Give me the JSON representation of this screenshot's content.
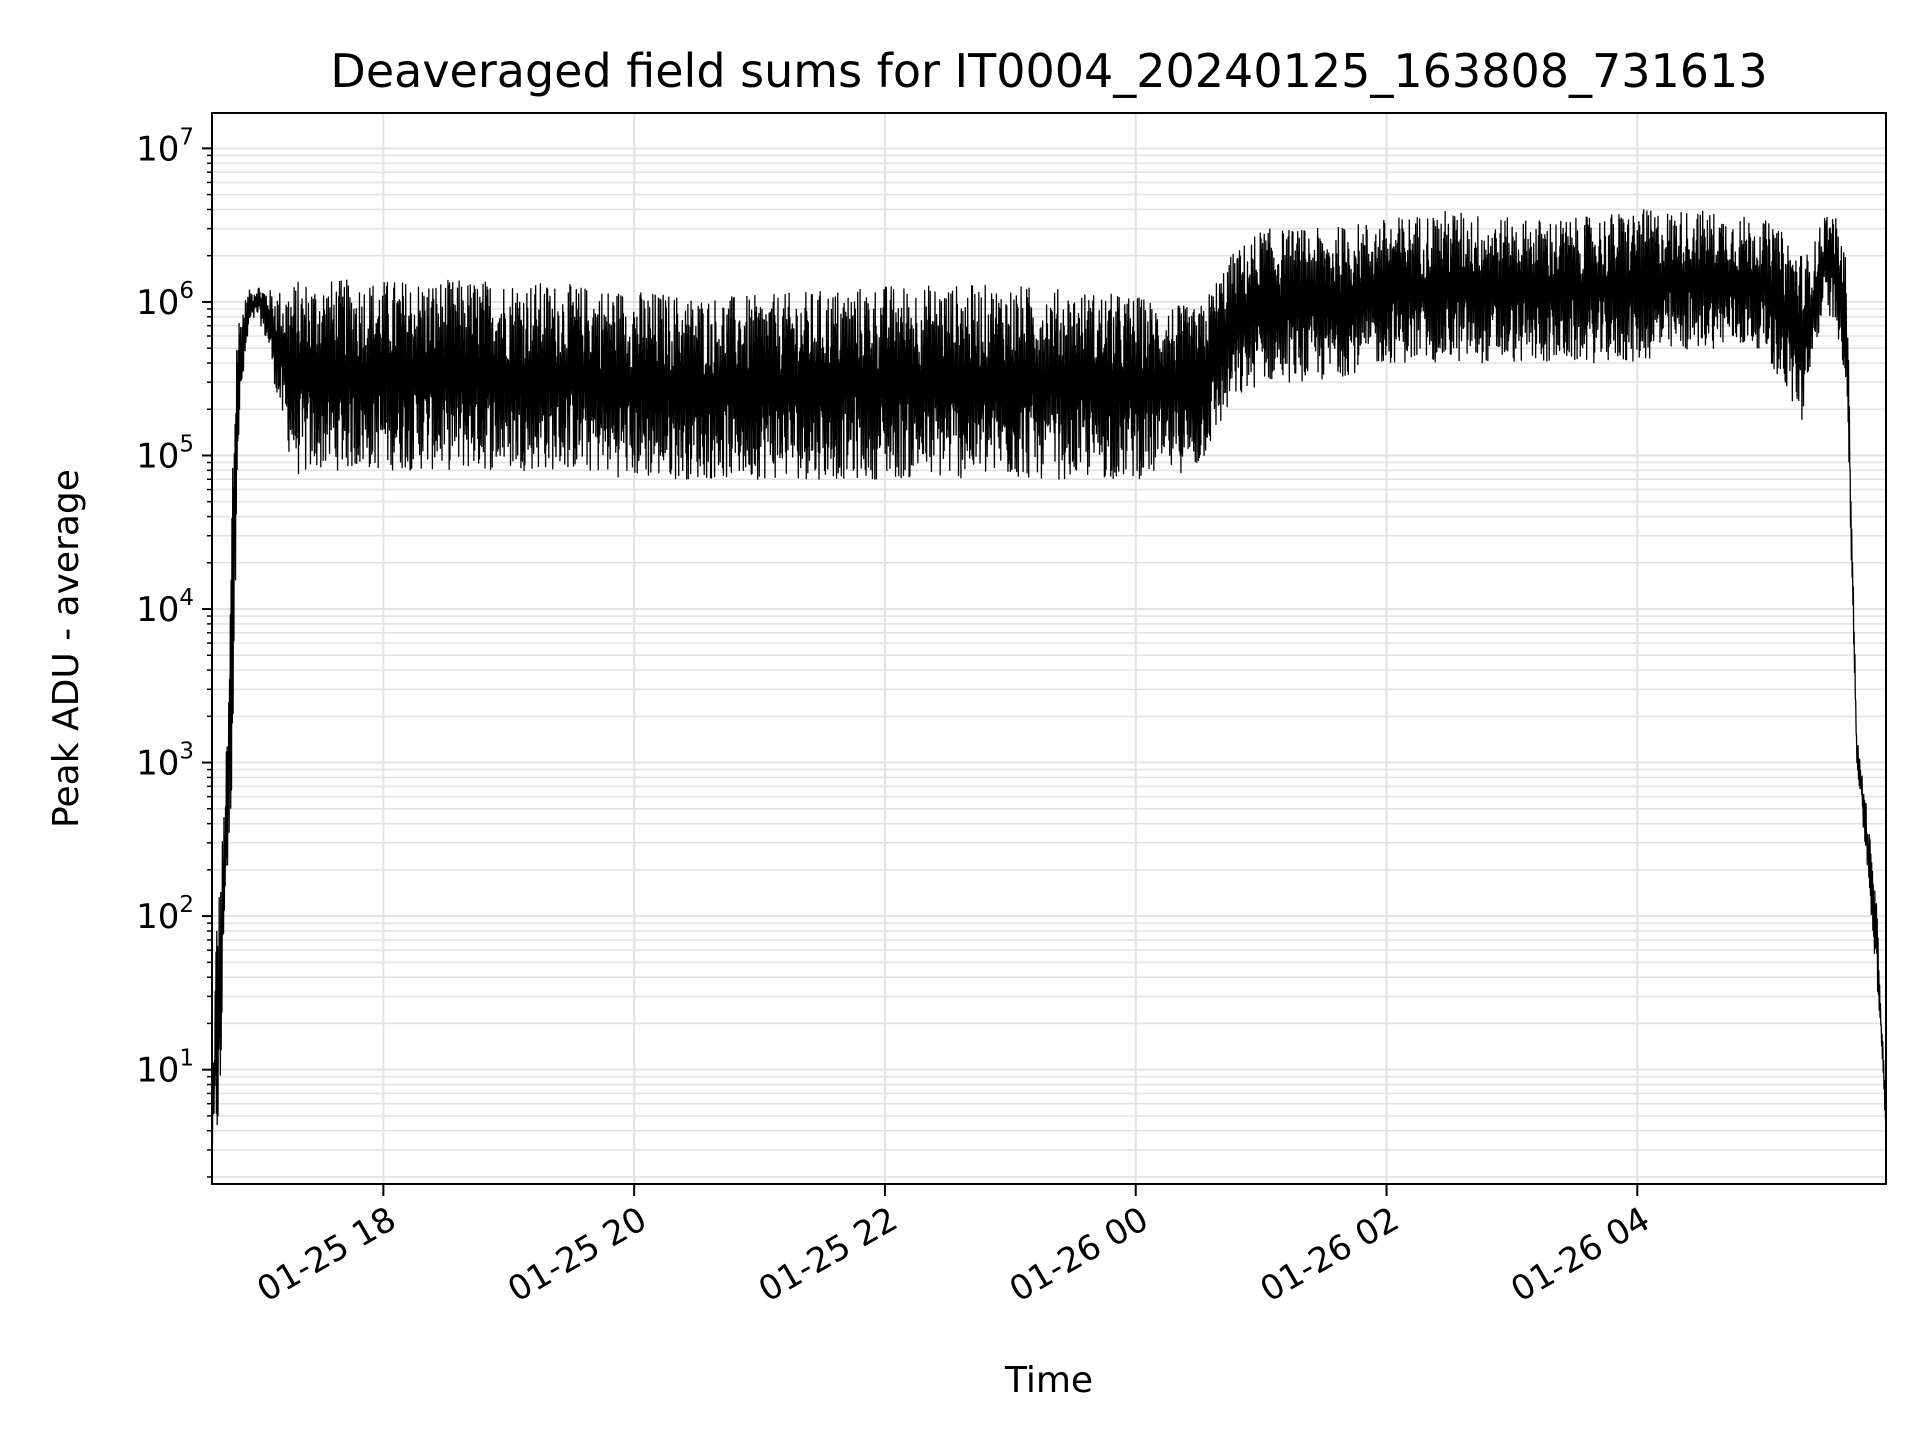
{
  "chart_data": {
    "type": "line",
    "title": "Deaveraged field sums for IT0004_20240125_163808_731613",
    "xlabel": "Time",
    "ylabel": "Peak ADU - average",
    "yscale": "log",
    "grid": true,
    "legend": "none",
    "line_color": "#000000",
    "grid_color": "#e3e3e3",
    "xlim": [
      "2024-01-25 16:38",
      "2024-01-26 05:59"
    ],
    "ylim": [
      1.8,
      17000000
    ],
    "x_ticks": [
      {
        "value": "2024-01-25 18:00",
        "label": "01-25 18"
      },
      {
        "value": "2024-01-25 20:00",
        "label": "01-25 20"
      },
      {
        "value": "2024-01-25 22:00",
        "label": "01-25 22"
      },
      {
        "value": "2024-01-26 00:00",
        "label": "01-26 00"
      },
      {
        "value": "2024-01-26 02:00",
        "label": "01-26 02"
      },
      {
        "value": "2024-01-26 04:00",
        "label": "01-26 04"
      }
    ],
    "y_ticks": [
      {
        "value": 10,
        "base": "10",
        "exp": "1"
      },
      {
        "value": 100,
        "base": "10",
        "exp": "2"
      },
      {
        "value": 1000,
        "base": "10",
        "exp": "3"
      },
      {
        "value": 10000,
        "base": "10",
        "exp": "4"
      },
      {
        "value": 100000,
        "base": "10",
        "exp": "5"
      },
      {
        "value": 1000000,
        "base": "10",
        "exp": "6"
      },
      {
        "value": 10000000,
        "base": "10",
        "exp": "7"
      }
    ],
    "series": [
      {
        "x": [
          "2024-01-25 16:38",
          "2024-01-25 16:40",
          "2024-01-25 16:42",
          "2024-01-25 16:44",
          "2024-01-25 16:46",
          "2024-01-25 16:48",
          "2024-01-25 16:50",
          "2024-01-25 16:53",
          "2024-01-25 16:56",
          "2024-01-25 17:00",
          "2024-01-25 17:05",
          "2024-01-25 17:10",
          "2024-01-25 17:15",
          "2024-01-25 17:20",
          "2024-01-25 17:30",
          "2024-01-25 17:45",
          "2024-01-25 18:00",
          "2024-01-25 18:30",
          "2024-01-25 19:00",
          "2024-01-25 19:30",
          "2024-01-25 20:00",
          "2024-01-25 20:30",
          "2024-01-25 21:00",
          "2024-01-25 21:30",
          "2024-01-25 22:00",
          "2024-01-25 22:30",
          "2024-01-25 23:00",
          "2024-01-25 23:30",
          "2024-01-26 00:00",
          "2024-01-26 00:30",
          "2024-01-26 00:45",
          "2024-01-26 01:00",
          "2024-01-26 01:30",
          "2024-01-26 02:00",
          "2024-01-26 02:30",
          "2024-01-26 03:00",
          "2024-01-26 03:30",
          "2024-01-26 04:00",
          "2024-01-26 04:30",
          "2024-01-26 05:00",
          "2024-01-26 05:15",
          "2024-01-26 05:20",
          "2024-01-26 05:25",
          "2024-01-26 05:30",
          "2024-01-26 05:35",
          "2024-01-26 05:40",
          "2024-01-26 05:45",
          "2024-01-26 05:50",
          "2024-01-26 05:55",
          "2024-01-26 05:59"
        ],
        "y_low": [
          3,
          3,
          4,
          110,
          200,
          900,
          80000,
          300000,
          700000,
          800000,
          500000,
          200000,
          100000,
          70000,
          80000,
          80000,
          80000,
          80000,
          80000,
          80000,
          70000,
          70000,
          70000,
          70000,
          70000,
          70000,
          70000,
          70000,
          70000,
          80000,
          200000,
          300000,
          300000,
          400000,
          400000,
          400000,
          400000,
          400000,
          500000,
          500000,
          200000,
          150000,
          500000,
          900000,
          700000,
          300000,
          1000,
          200,
          30,
          4
        ],
        "y_high": [
          4,
          100,
          200,
          600,
          3000,
          200000,
          800000,
          1000000,
          1200000,
          1300000,
          1200000,
          1200000,
          1300000,
          1400000,
          1400000,
          1400000,
          1400000,
          1400000,
          1400000,
          1300000,
          1200000,
          1100000,
          1100000,
          1200000,
          1300000,
          1300000,
          1300000,
          1200000,
          1100000,
          900000,
          2000000,
          3000000,
          3000000,
          3500000,
          4000000,
          3500000,
          3500000,
          4000000,
          4000000,
          3500000,
          2500000,
          2000000,
          2500000,
          4000000,
          3500000,
          2000000,
          1500,
          500,
          100,
          5
        ]
      }
    ]
  }
}
